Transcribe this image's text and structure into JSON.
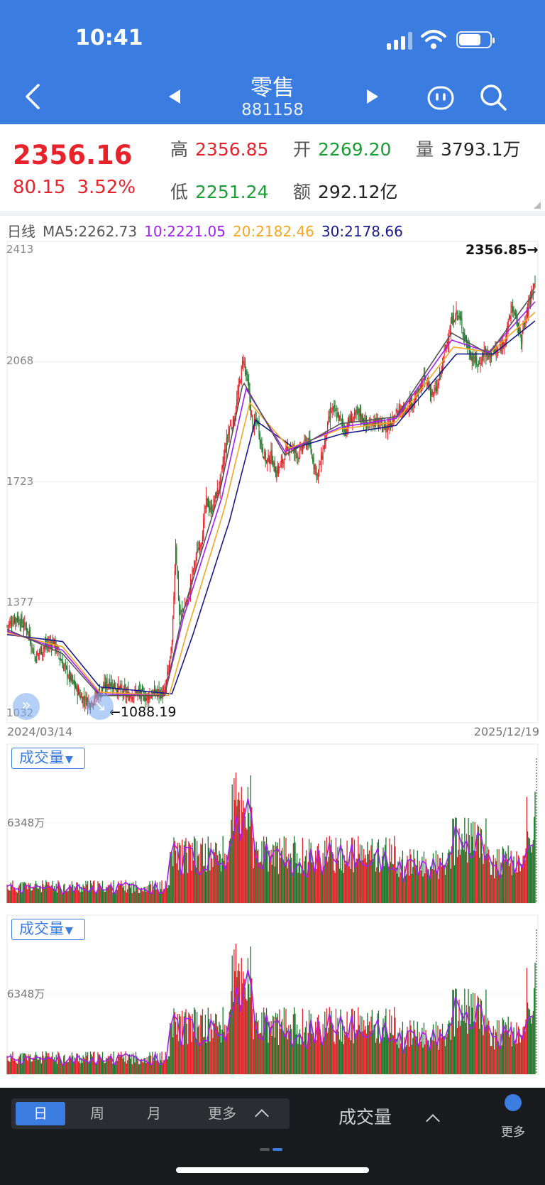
{
  "status": {
    "time": "10:41"
  },
  "header": {
    "title": "零售",
    "code": "881158"
  },
  "quote": {
    "price": "2356.16",
    "change": "80.15",
    "change_pct": "3.52%",
    "high_label": "高",
    "high": "2356.85",
    "open_label": "开",
    "open": "2269.20",
    "volume_label": "量",
    "volume": "3793.1万",
    "low_label": "低",
    "low": "2251.24",
    "amount_label": "额",
    "amount": "292.12亿"
  },
  "ma_legend": {
    "period": "日线",
    "ma5": "MA5:2262.73",
    "ma10": "10:2221.05",
    "ma20": "20:2182.46",
    "ma30": "30:2178.66"
  },
  "colors": {
    "up": "#e8222a",
    "down": "#1a7a2c",
    "ma5": "#555555",
    "ma10": "#a020f0",
    "ma20": "#f5a623",
    "ma30": "#1a1a8c",
    "accent": "#3a7ce0"
  },
  "chart_data": [
    {
      "type": "candlestick",
      "x_start": "2024/03/14",
      "x_end": "2025/12/19",
      "y_ticks": [
        "2413",
        "2068",
        "1723",
        "1377",
        "1032"
      ],
      "ylim": [
        1032,
        2413
      ],
      "high_marker": "2356.85→",
      "low_marker": "←1088.19",
      "close_path": [
        [
          0,
          1310
        ],
        [
          10,
          1335
        ],
        [
          22,
          1300
        ],
        [
          30,
          1220
        ],
        [
          40,
          1250
        ],
        [
          50,
          1265
        ],
        [
          60,
          1200
        ],
        [
          70,
          1150
        ],
        [
          80,
          1105
        ],
        [
          90,
          1090
        ],
        [
          100,
          1120
        ],
        [
          110,
          1150
        ],
        [
          120,
          1130
        ],
        [
          130,
          1110
        ],
        [
          140,
          1120
        ],
        [
          150,
          1105
        ],
        [
          160,
          1120
        ],
        [
          170,
          1115
        ],
        [
          178,
          1250
        ],
        [
          182,
          1550
        ],
        [
          186,
          1340
        ],
        [
          195,
          1380
        ],
        [
          200,
          1460
        ],
        [
          205,
          1520
        ],
        [
          210,
          1560
        ],
        [
          215,
          1670
        ],
        [
          220,
          1640
        ],
        [
          225,
          1680
        ],
        [
          230,
          1720
        ],
        [
          235,
          1810
        ],
        [
          240,
          1880
        ],
        [
          245,
          1900
        ],
        [
          250,
          1990
        ],
        [
          255,
          2080
        ],
        [
          260,
          2000
        ],
        [
          265,
          1880
        ],
        [
          270,
          1900
        ],
        [
          275,
          1820
        ],
        [
          280,
          1780
        ],
        [
          285,
          1800
        ],
        [
          290,
          1750
        ],
        [
          295,
          1770
        ],
        [
          300,
          1800
        ],
        [
          305,
          1830
        ],
        [
          310,
          1810
        ],
        [
          315,
          1800
        ],
        [
          320,
          1830
        ],
        [
          325,
          1840
        ],
        [
          330,
          1790
        ],
        [
          335,
          1740
        ],
        [
          340,
          1800
        ],
        [
          345,
          1870
        ],
        [
          350,
          1930
        ],
        [
          355,
          1920
        ],
        [
          360,
          1900
        ],
        [
          365,
          1870
        ],
        [
          370,
          1900
        ],
        [
          375,
          1910
        ],
        [
          380,
          1920
        ],
        [
          385,
          1900
        ],
        [
          390,
          1880
        ],
        [
          395,
          1900
        ],
        [
          400,
          1890
        ],
        [
          405,
          1880
        ],
        [
          410,
          1880
        ],
        [
          415,
          1900
        ],
        [
          420,
          1930
        ],
        [
          425,
          1920
        ],
        [
          430,
          1940
        ],
        [
          435,
          1950
        ],
        [
          440,
          1960
        ],
        [
          445,
          1980
        ],
        [
          450,
          2020
        ],
        [
          455,
          2000
        ],
        [
          460,
          1970
        ],
        [
          465,
          2000
        ],
        [
          470,
          2060
        ],
        [
          475,
          2130
        ],
        [
          480,
          2180
        ],
        [
          485,
          2210
        ],
        [
          490,
          2180
        ],
        [
          495,
          2130
        ],
        [
          500,
          2090
        ],
        [
          505,
          2070
        ],
        [
          510,
          2060
        ],
        [
          515,
          2100
        ],
        [
          520,
          2080
        ],
        [
          525,
          2100
        ],
        [
          530,
          2090
        ],
        [
          535,
          2120
        ],
        [
          540,
          2160
        ],
        [
          545,
          2230
        ],
        [
          550,
          2180
        ],
        [
          555,
          2140
        ],
        [
          560,
          2190
        ],
        [
          565,
          2260
        ],
        [
          570,
          2300
        ]
      ],
      "ma5_path": [
        [
          0,
          1300
        ],
        [
          60,
          1230
        ],
        [
          100,
          1110
        ],
        [
          170,
          1110
        ],
        [
          190,
          1350
        ],
        [
          230,
          1700
        ],
        [
          255,
          2010
        ],
        [
          300,
          1800
        ],
        [
          360,
          1890
        ],
        [
          420,
          1910
        ],
        [
          480,
          2150
        ],
        [
          520,
          2090
        ],
        [
          570,
          2270
        ]
      ],
      "ma10_path": [
        [
          0,
          1295
        ],
        [
          60,
          1240
        ],
        [
          100,
          1115
        ],
        [
          170,
          1110
        ],
        [
          190,
          1330
        ],
        [
          232,
          1680
        ],
        [
          258,
          1990
        ],
        [
          300,
          1810
        ],
        [
          360,
          1880
        ],
        [
          420,
          1905
        ],
        [
          480,
          2130
        ],
        [
          520,
          2095
        ],
        [
          570,
          2240
        ]
      ],
      "ma20_path": [
        [
          0,
          1290
        ],
        [
          60,
          1250
        ],
        [
          100,
          1120
        ],
        [
          175,
          1110
        ],
        [
          195,
          1300
        ],
        [
          235,
          1650
        ],
        [
          262,
          1950
        ],
        [
          305,
          1820
        ],
        [
          360,
          1875
        ],
        [
          420,
          1895
        ],
        [
          482,
          2110
        ],
        [
          522,
          2095
        ],
        [
          570,
          2210
        ]
      ],
      "ma30_path": [
        [
          0,
          1285
        ],
        [
          60,
          1265
        ],
        [
          100,
          1135
        ],
        [
          178,
          1115
        ],
        [
          200,
          1280
        ],
        [
          240,
          1610
        ],
        [
          268,
          1900
        ],
        [
          310,
          1820
        ],
        [
          360,
          1860
        ],
        [
          420,
          1885
        ],
        [
          485,
          2090
        ],
        [
          525,
          2090
        ],
        [
          570,
          2185
        ]
      ]
    },
    {
      "type": "bar",
      "title": "成交量",
      "y_tick": "6348万"
    },
    {
      "type": "bar",
      "title": "成交量",
      "y_tick": "6348万"
    }
  ],
  "bottom": {
    "tabs": [
      "日",
      "周",
      "月",
      "更多"
    ],
    "volume_label": "成交量",
    "more_label": "更多"
  }
}
